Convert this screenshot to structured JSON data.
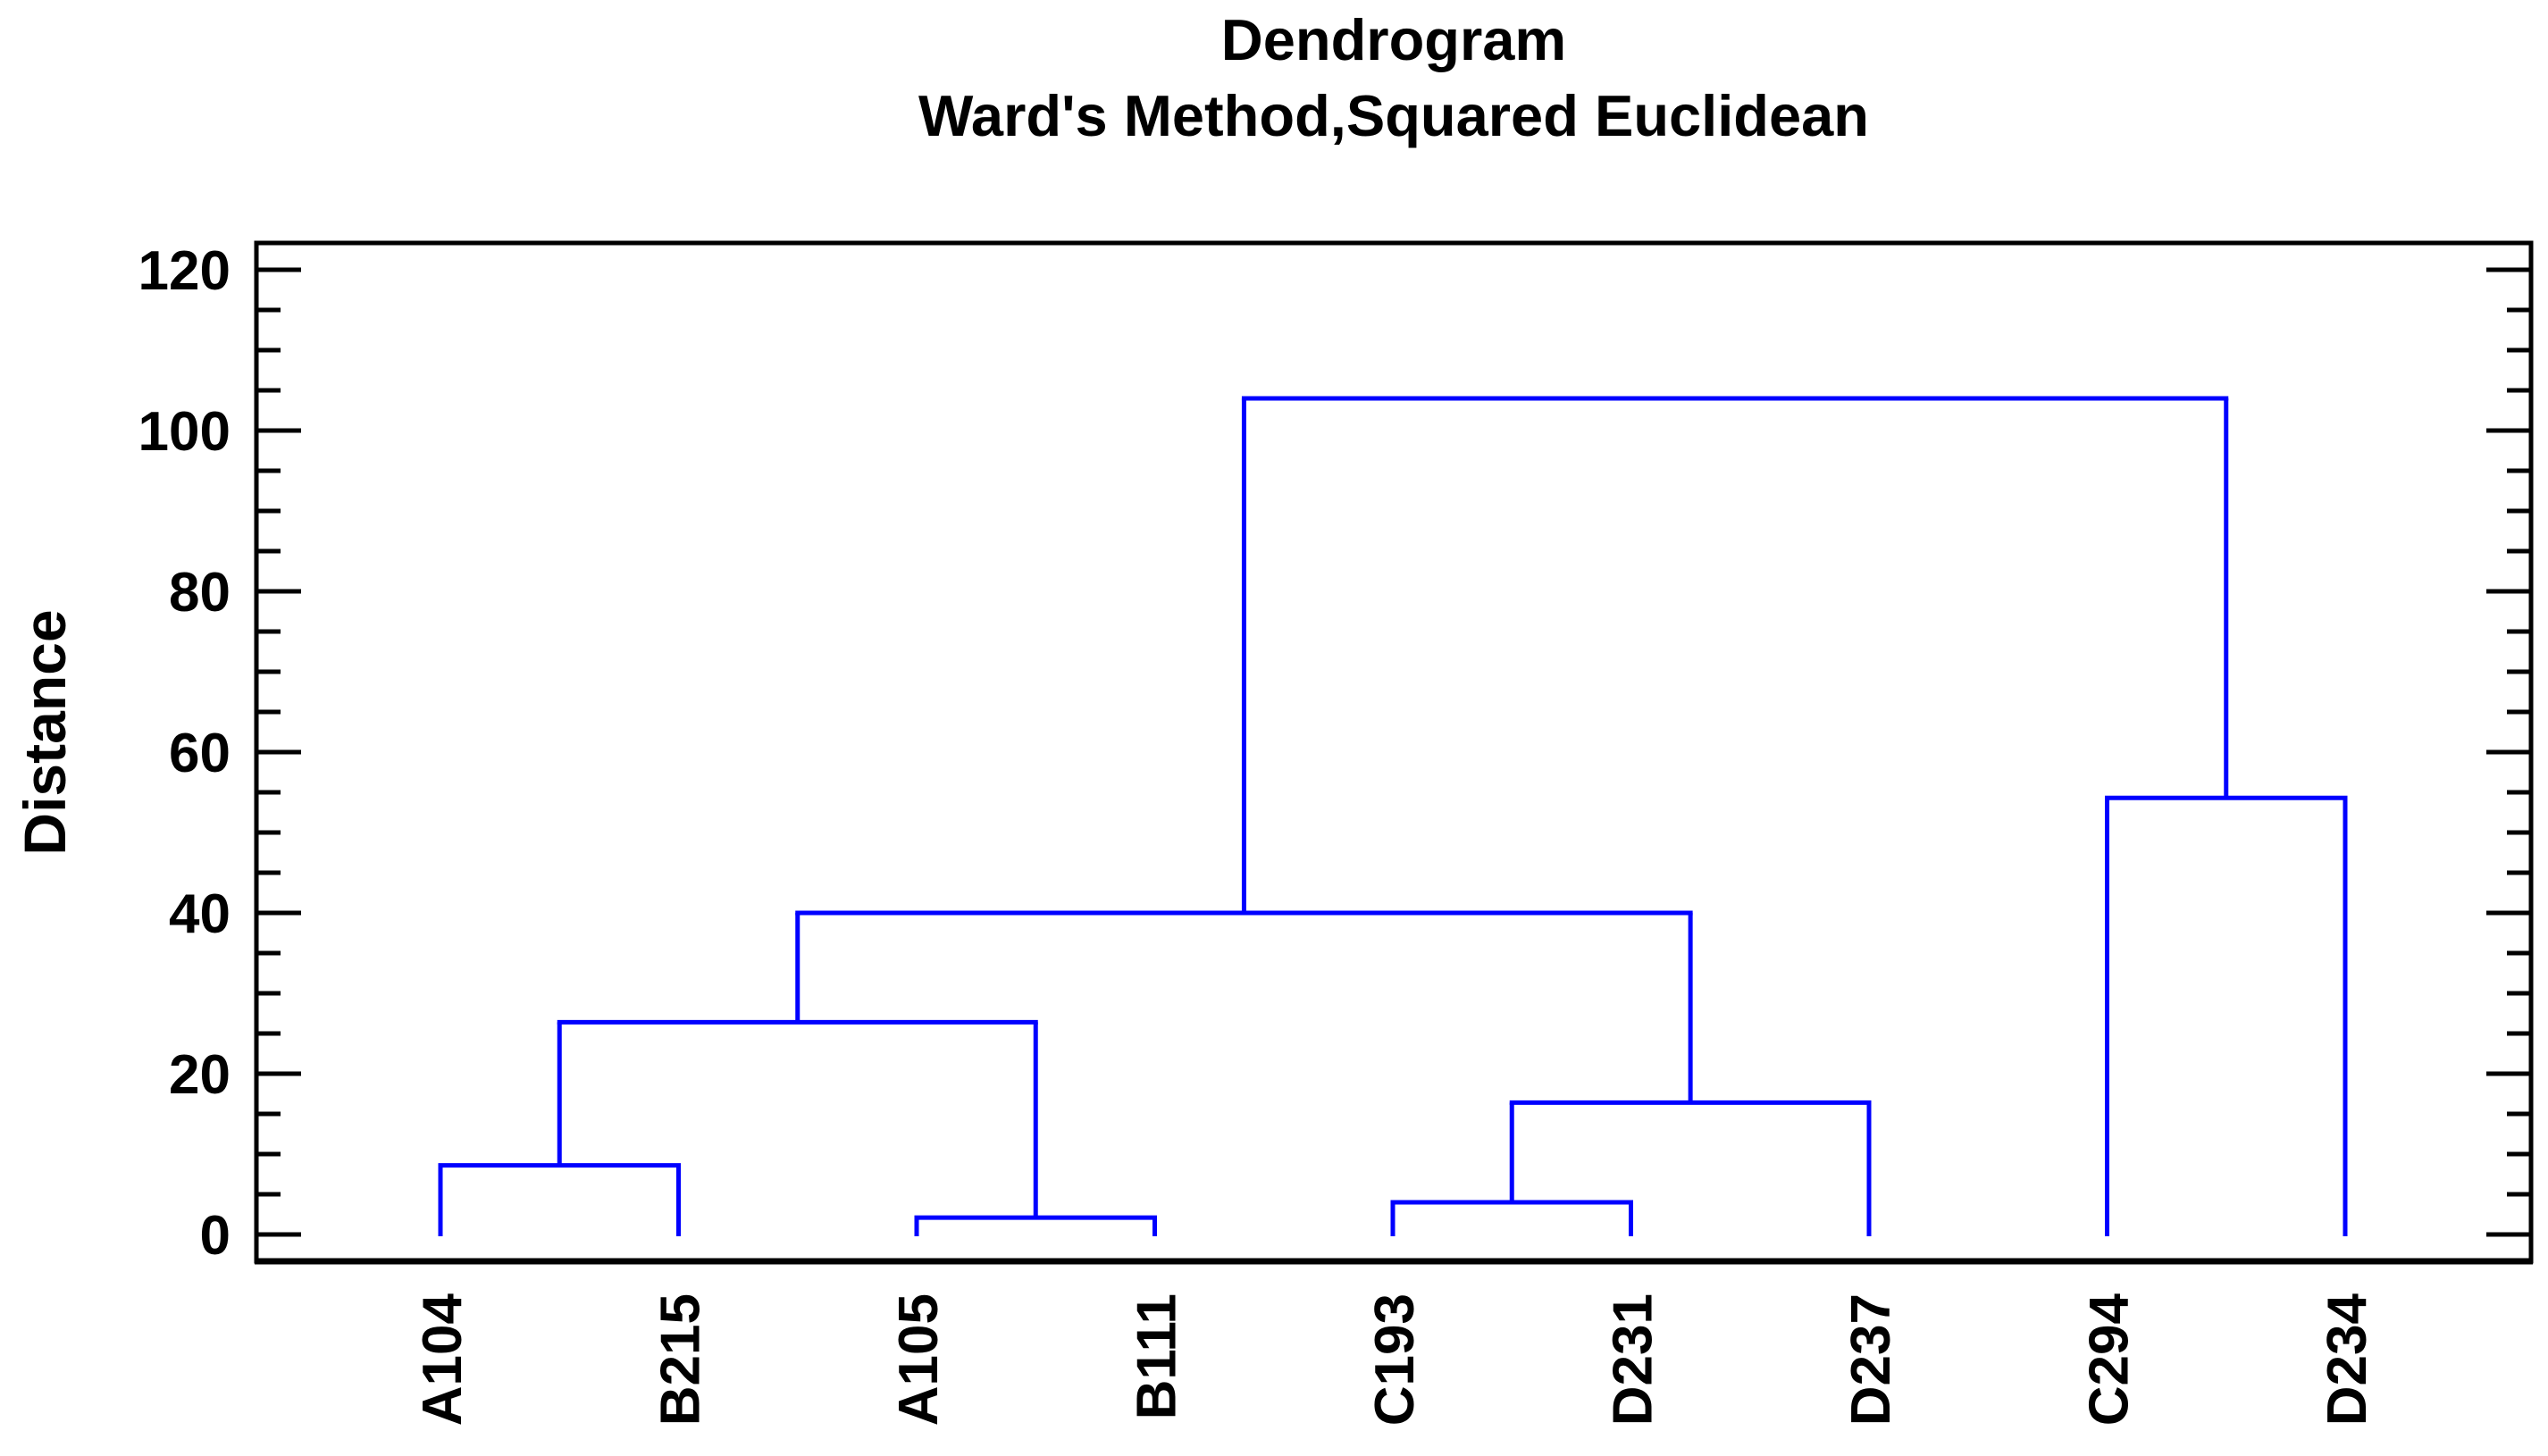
{
  "title": "Dendrogram",
  "subtitle": "Ward's Method,Squared Euclidean",
  "y_axis": {
    "label": "Distance",
    "tick_labels": [
      "0",
      "20",
      "40",
      "60",
      "80",
      "100",
      "120"
    ],
    "tick_values": [
      0,
      20,
      40,
      60,
      80,
      100,
      120
    ],
    "minor_tick_step": 5,
    "ylim": [
      0,
      120
    ]
  },
  "colors": {
    "tree_line": "#0000FF",
    "frame": "#000000",
    "text": "#000000",
    "background": "#FFFFFF"
  },
  "chart_data": {
    "type": "dendrogram",
    "title": "Dendrogram",
    "subtitle": "Ward's Method,Squared Euclidean",
    "method": "Ward's Method",
    "metric": "Squared Euclidean",
    "ylabel": "Distance",
    "ylim": [
      0,
      120
    ],
    "grid": false,
    "leaves": [
      "A104",
      "B215",
      "A105",
      "B111",
      "C193",
      "D231",
      "D237",
      "C294",
      "D234"
    ],
    "merges": [
      {
        "id": "M1",
        "children": [
          "A105",
          "B111"
        ],
        "height": 2.1
      },
      {
        "id": "M2",
        "children": [
          "C193",
          "D231"
        ],
        "height": 4.0
      },
      {
        "id": "M3",
        "children": [
          "A104",
          "B215"
        ],
        "height": 8.6
      },
      {
        "id": "M4",
        "children": [
          "M2",
          "D237"
        ],
        "height": 16.4
      },
      {
        "id": "M5",
        "children": [
          "M3",
          "M1"
        ],
        "height": 26.4
      },
      {
        "id": "M6",
        "children": [
          "M5",
          "M4"
        ],
        "height": 40.0
      },
      {
        "id": "M7",
        "children": [
          "C294",
          "D234"
        ],
        "height": 54.3
      },
      {
        "id": "M8",
        "children": [
          "M6",
          "M7"
        ],
        "height": 104.0
      }
    ]
  }
}
